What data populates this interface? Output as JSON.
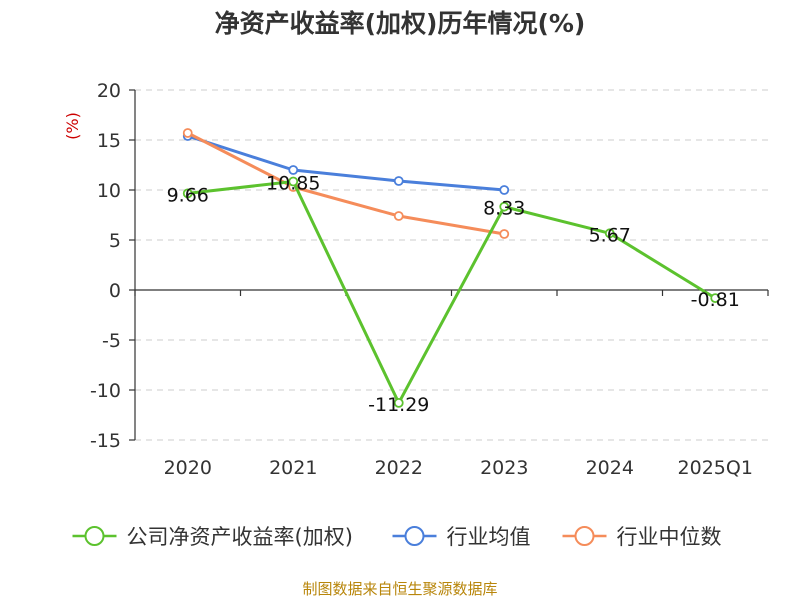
{
  "chart_data": {
    "type": "line",
    "title": "净资产收益率(加权)历年情况(%)",
    "ylabel": "(%)",
    "categories": [
      "2020",
      "2021",
      "2022",
      "2023",
      "2024",
      "2025Q1"
    ],
    "ylim": [
      -15,
      20
    ],
    "yticks": [
      20,
      15,
      10,
      5,
      0,
      -5,
      -10,
      -15
    ],
    "ytick_labels": [
      "20",
      "15",
      "10",
      "5",
      "0",
      "-5",
      "-10",
      "-15"
    ],
    "grid": true,
    "legend_position": "bottom",
    "series": [
      {
        "name": "公司净资产收益率(加权)",
        "color": "#5cc22e",
        "values": [
          9.66,
          10.85,
          -11.29,
          8.33,
          5.67,
          -0.81
        ],
        "labels": [
          "9.66",
          "10.85",
          "-11.29",
          "8.33",
          "5.67",
          "-0.81"
        ]
      },
      {
        "name": "行业均值",
        "color": "#4a7fdb",
        "values": [
          15.4,
          12.0,
          10.9,
          10.0,
          null,
          null
        ]
      },
      {
        "name": "行业中位数",
        "color": "#f58c5a",
        "values": [
          15.7,
          10.3,
          7.4,
          5.6,
          null,
          null
        ]
      }
    ],
    "source": "制图数据来自恒生聚源数据库"
  }
}
